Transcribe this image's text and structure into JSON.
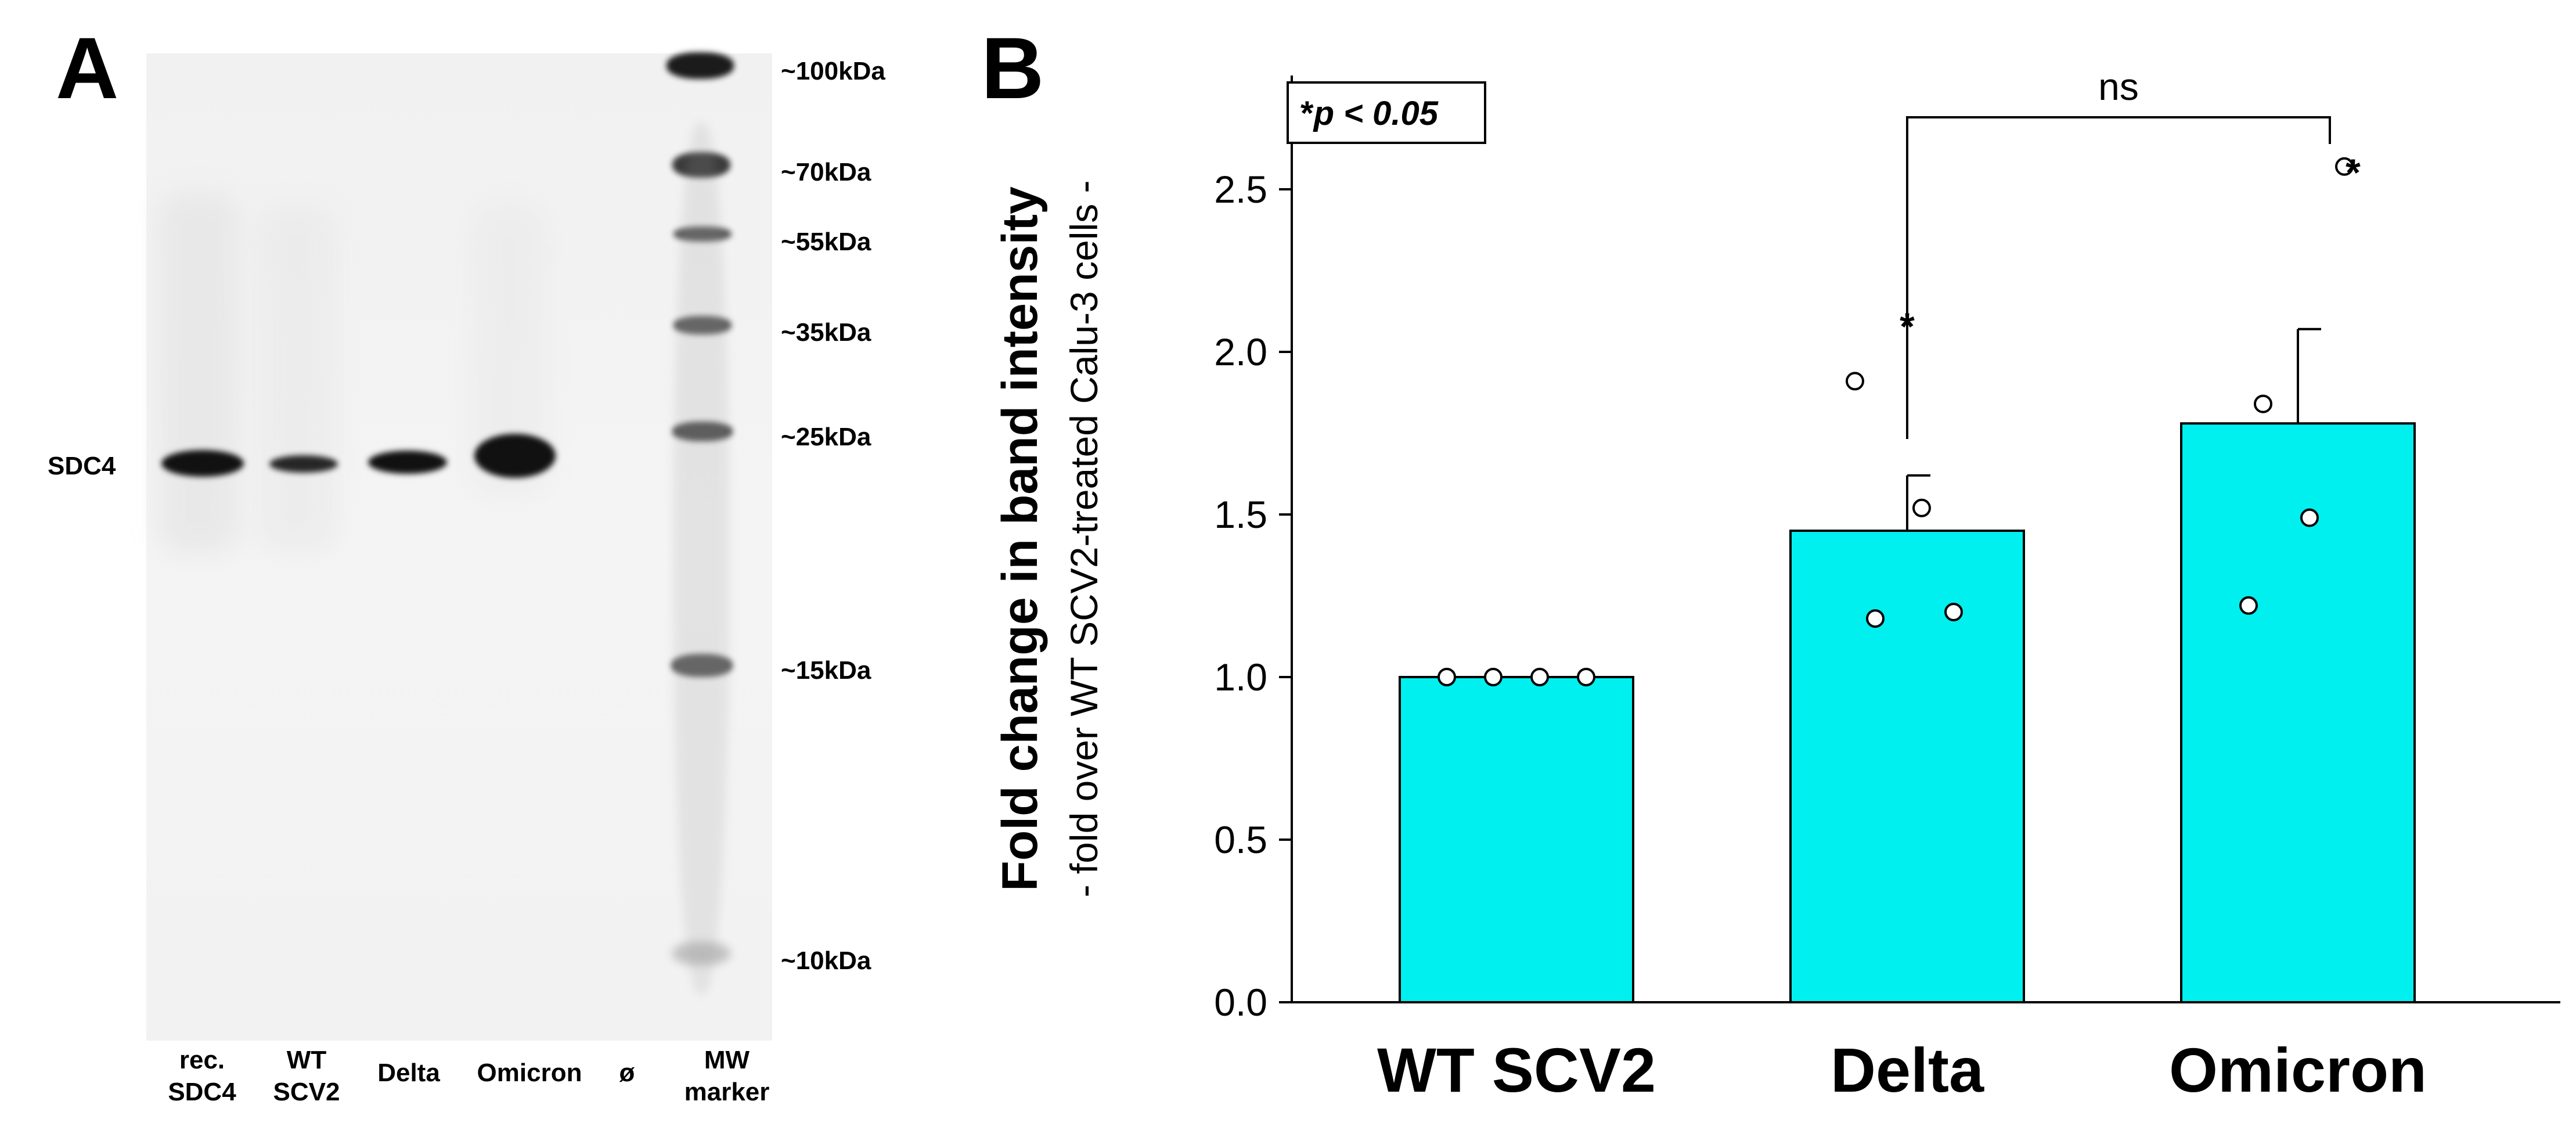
{
  "panel_a": {
    "label": "A",
    "protein_label": "SDC4",
    "lanes": [
      {
        "line1": "rec.",
        "line2": "SDC4"
      },
      {
        "line1": "WT",
        "line2": "SCV2"
      },
      {
        "line1": "Delta",
        "line2": ""
      },
      {
        "line1": "Omicron",
        "line2": ""
      },
      {
        "line1": "ø",
        "line2": ""
      },
      {
        "line1": "MW",
        "line2": "marker"
      }
    ],
    "mw_markers": [
      "~100kDa",
      "~70kDa",
      "~55kDa",
      "~35kDa",
      "~25kDa",
      "~15kDa",
      "~10kDa"
    ]
  },
  "panel_b": {
    "label": "B",
    "significance_note_star": "*",
    "significance_note_text": "p < 0.05"
  },
  "chart_data": {
    "type": "bar",
    "title": "",
    "xlabel": "",
    "ylabel": "Fold change in band intensity",
    "ylabel_sub": "- fold over WT SCV2-treated Calu-3 cells -",
    "categories": [
      "WT SCV2",
      "Delta",
      "Omicron"
    ],
    "values": [
      1.0,
      1.45,
      1.78
    ],
    "error_upper": [
      0.0,
      0.17,
      0.29
    ],
    "points": [
      [
        1.0,
        1.0,
        1.0,
        1.0
      ],
      [
        1.91,
        1.52,
        1.18,
        1.2
      ],
      [
        1.84,
        1.49,
        1.22,
        2.57
      ]
    ],
    "ylim": [
      0,
      2.85
    ],
    "yticks": [
      0.0,
      0.5,
      1.0,
      1.5,
      2.0,
      2.5
    ],
    "ytick_labels": [
      "0.0",
      "0.5",
      "1.0",
      "1.5",
      "2.0",
      "2.5"
    ],
    "bar_color": "#00f0f0",
    "annotations": [
      {
        "category": "Delta",
        "text": "*"
      },
      {
        "category": "Omicron",
        "text": "*"
      }
    ],
    "comparison": {
      "from": "Delta",
      "to": "Omicron",
      "text": "ns"
    },
    "grid": false,
    "legend": "none"
  }
}
